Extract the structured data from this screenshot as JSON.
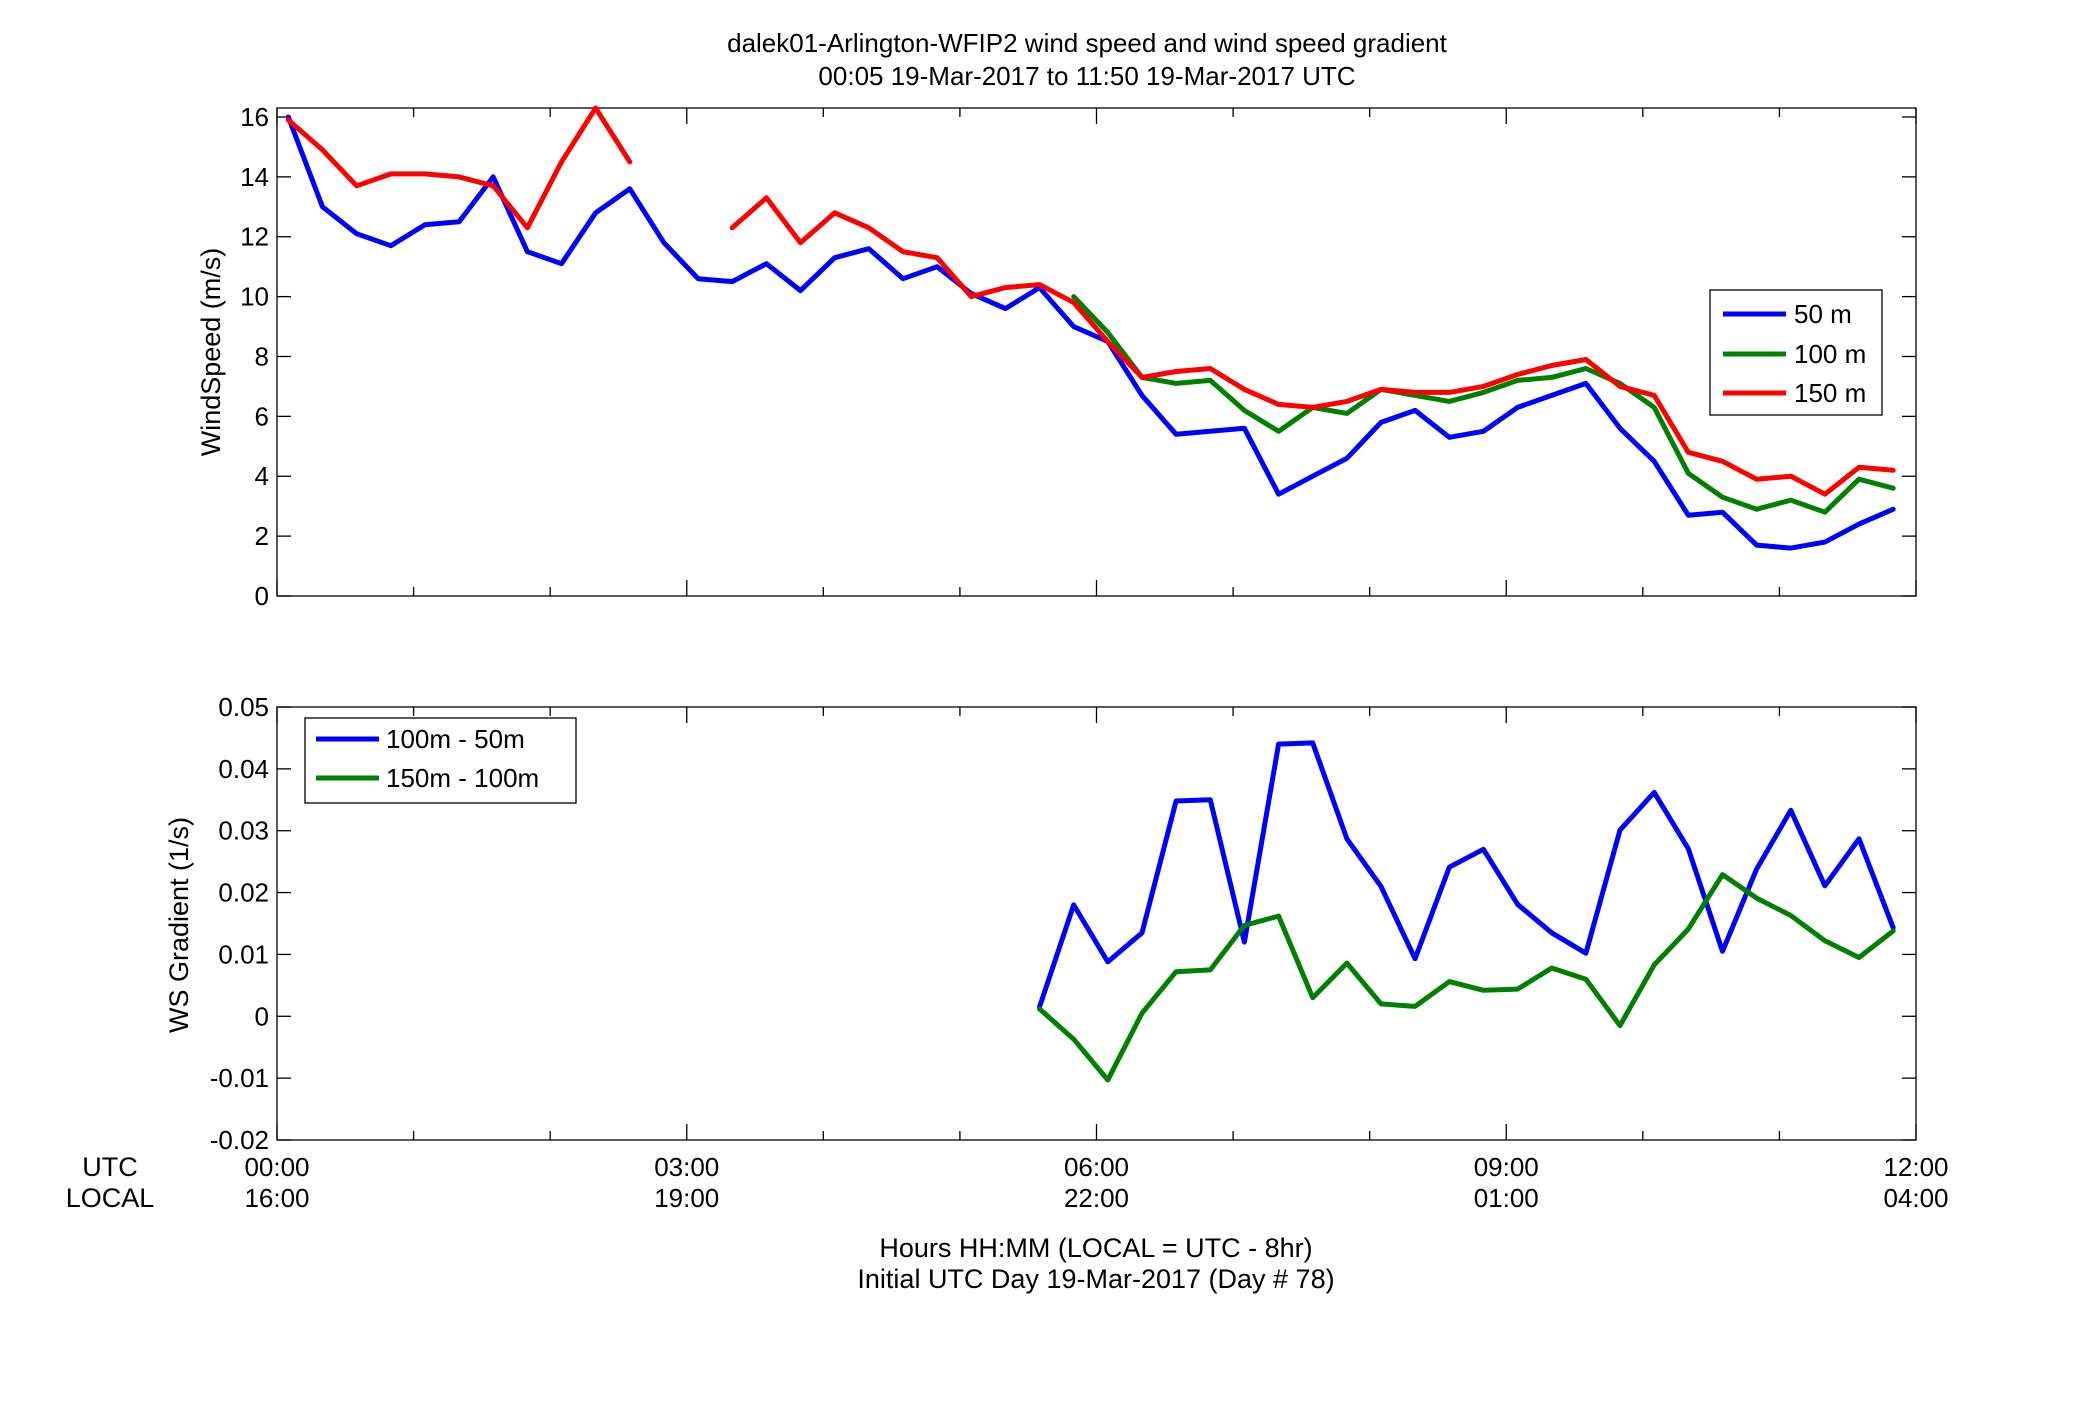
{
  "chart_data": [
    {
      "type": "line",
      "title": "dalek01-Arlington-WFIP2  wind speed and wind speed gradient",
      "subtitle": "00:05 19-Mar-2017 to 11:50 19-Mar-2017  UTC",
      "xlabel": "",
      "ylabel": "WindSpeed (m/s)",
      "xlim": [
        0,
        12
      ],
      "ylim": [
        0,
        16.3
      ],
      "yticks": [
        "0",
        "2",
        "4",
        "6",
        "8",
        "10",
        "12",
        "14",
        "16"
      ],
      "grid": false,
      "legend_position": "right",
      "x": [
        0.083,
        0.333,
        0.583,
        0.833,
        1.083,
        1.333,
        1.583,
        1.833,
        2.083,
        2.333,
        2.583,
        2.833,
        3.083,
        3.333,
        3.583,
        3.833,
        4.083,
        4.333,
        4.583,
        4.833,
        5.083,
        5.333,
        5.583,
        5.833,
        6.083,
        6.333,
        6.583,
        6.833,
        7.083,
        7.333,
        7.583,
        7.833,
        8.083,
        8.333,
        8.583,
        8.833,
        9.083,
        9.333,
        9.583,
        9.833,
        10.083,
        10.333,
        10.583,
        10.833,
        11.083,
        11.333,
        11.583,
        11.833
      ],
      "series": [
        {
          "name": "50 m",
          "color": "#0000ff",
          "values": [
            16.0,
            13.0,
            12.1,
            11.7,
            12.4,
            12.5,
            14.0,
            11.5,
            11.1,
            12.8,
            13.6,
            11.8,
            10.6,
            10.5,
            11.1,
            10.2,
            11.3,
            11.6,
            10.6,
            11.0,
            10.1,
            9.6,
            10.3,
            9.0,
            8.5,
            6.7,
            5.4,
            5.5,
            5.6,
            3.4,
            4.0,
            4.6,
            5.8,
            6.2,
            5.3,
            5.5,
            6.3,
            6.7,
            7.1,
            5.6,
            4.5,
            2.7,
            2.8,
            1.7,
            1.6,
            1.8,
            2.4,
            2.9
          ]
        },
        {
          "name": "100 m",
          "color": "#008000",
          "values": [
            null,
            null,
            null,
            null,
            null,
            null,
            null,
            null,
            null,
            null,
            null,
            null,
            null,
            null,
            null,
            null,
            null,
            null,
            null,
            null,
            null,
            null,
            null,
            10.0,
            8.8,
            7.3,
            7.1,
            7.2,
            6.2,
            5.5,
            6.3,
            6.1,
            6.9,
            6.7,
            6.5,
            6.8,
            7.2,
            7.3,
            7.6,
            7.1,
            6.3,
            4.1,
            3.3,
            2.9,
            3.2,
            2.8,
            3.9,
            3.6
          ]
        },
        {
          "name": "150 m",
          "color": "#ff0000",
          "values": [
            15.9,
            14.9,
            13.7,
            14.1,
            14.1,
            14.0,
            13.7,
            12.3,
            14.5,
            16.3,
            14.5,
            null,
            null,
            12.3,
            13.3,
            11.8,
            12.8,
            12.3,
            11.5,
            11.3,
            10.0,
            10.3,
            10.4,
            9.8,
            8.5,
            7.3,
            7.5,
            7.6,
            6.9,
            6.4,
            6.3,
            6.5,
            6.9,
            6.8,
            6.8,
            7.0,
            7.4,
            7.7,
            7.9,
            7.0,
            6.7,
            4.8,
            4.5,
            3.9,
            4.0,
            3.4,
            4.3,
            4.2
          ]
        }
      ]
    },
    {
      "type": "line",
      "title": "",
      "xlabel": "Hours HH:MM  (LOCAL = UTC - 8hr)",
      "xlabel_line2": "Initial UTC Day 19-Mar-2017 (Day # 78)",
      "ylabel": "WS Gradient (1/s)",
      "xlim": [
        0,
        12
      ],
      "ylim": [
        -0.02,
        0.05
      ],
      "yticks": [
        "-0.02",
        "-0.01",
        "0",
        "0.01",
        "0.02",
        "0.03",
        "0.04",
        "0.05"
      ],
      "xtick_row_labels": [
        "UTC",
        "LOCAL"
      ],
      "xticks_utc": [
        "00:00",
        "03:00",
        "06:00",
        "09:00",
        "12:00"
      ],
      "xticks_local": [
        "16:00",
        "19:00",
        "22:00",
        "01:00",
        "04:00"
      ],
      "grid": false,
      "legend_position": "top-left",
      "x": [
        5.583,
        5.833,
        6.083,
        6.333,
        6.583,
        6.833,
        7.083,
        7.333,
        7.583,
        7.833,
        8.083,
        8.333,
        8.583,
        8.833,
        9.083,
        9.333,
        9.583,
        9.833,
        10.083,
        10.333,
        10.583,
        10.833,
        11.083,
        11.333,
        11.583,
        11.833
      ],
      "series": [
        {
          "name": "100m - 50m",
          "color": "#0000ff",
          "values": [
            0.0015,
            0.018,
            0.0088,
            0.0135,
            0.0348,
            0.035,
            0.012,
            0.044,
            0.0442,
            0.0287,
            0.021,
            0.0093,
            0.0241,
            0.027,
            0.0181,
            0.0135,
            0.0102,
            0.0301,
            0.0362,
            0.0271,
            0.0105,
            0.0238,
            0.0333,
            0.0211,
            0.0287,
            0.0143
          ]
        },
        {
          "name": "150m - 100m",
          "color": "#008000",
          "values": [
            0.0012,
            -0.0037,
            -0.0103,
            0.0005,
            0.0072,
            0.0075,
            0.0147,
            0.0162,
            0.003,
            0.0086,
            0.002,
            0.0016,
            0.0056,
            0.0042,
            0.0044,
            0.0078,
            0.006,
            -0.0015,
            0.0083,
            0.0141,
            0.0229,
            0.0191,
            0.0163,
            0.0122,
            0.0095,
            0.0138
          ]
        }
      ]
    }
  ]
}
